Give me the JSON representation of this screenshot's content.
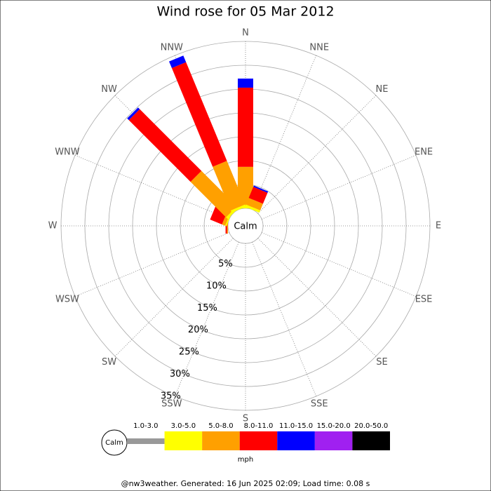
{
  "chart_data": {
    "type": "windrose",
    "title": "Wind rose for 05 Mar 2012",
    "directions": [
      "N",
      "NNE",
      "NE",
      "ENE",
      "E",
      "ESE",
      "SE",
      "SSE",
      "S",
      "SSW",
      "SW",
      "WSW",
      "W",
      "WNW",
      "NW",
      "NNW"
    ],
    "calm_label": "Calm",
    "rlim": [
      0,
      35
    ],
    "rticks": [
      {
        "value": 5,
        "label": "5%"
      },
      {
        "value": 10,
        "label": "10%"
      },
      {
        "value": 15,
        "label": "15%"
      },
      {
        "value": 20,
        "label": "20%"
      },
      {
        "value": 25,
        "label": "25%"
      },
      {
        "value": 30,
        "label": "30%"
      },
      {
        "value": 35,
        "label": "35%"
      }
    ],
    "series": [
      {
        "name": "1.0-3.0",
        "color": "#999999",
        "values": [
          0,
          0,
          0,
          0,
          0,
          0,
          0,
          0,
          0,
          0,
          0,
          0,
          0,
          0,
          0,
          0
        ]
      },
      {
        "name": "3.0-5.0",
        "color": "#ffff00",
        "values": [
          0.3,
          0.5,
          0,
          0,
          0,
          0,
          0,
          0,
          0,
          0,
          0,
          0,
          0,
          0.3,
          0.5,
          0.5
        ]
      },
      {
        "name": "5.0-8.0",
        "color": "#ffa000",
        "values": [
          8.4,
          1.5,
          0,
          0,
          0,
          0,
          0,
          0,
          0,
          0,
          0,
          0,
          0.2,
          0.7,
          10.5,
          9.9
        ]
      },
      {
        "name": "8.0-11.0",
        "color": "#ff0000",
        "values": [
          16.6,
          2.5,
          0,
          0,
          0,
          0,
          0,
          0,
          0,
          0,
          0,
          0,
          0.3,
          2.7,
          18.3,
          22.4
        ]
      },
      {
        "name": "11.0-15.0",
        "color": "#0000ff",
        "values": [
          1.9,
          0.3,
          0,
          0,
          0,
          0,
          0,
          0,
          0,
          0,
          0,
          0,
          0,
          0,
          0.5,
          1.5
        ]
      },
      {
        "name": "15.0-20.0",
        "color": "#a020f0",
        "values": [
          0,
          0,
          0,
          0,
          0,
          0,
          0,
          0,
          0,
          0,
          0,
          0,
          0,
          0,
          0,
          0
        ]
      },
      {
        "name": "20.0-50.0",
        "color": "#000000",
        "values": [
          0,
          0,
          0,
          0,
          0,
          0,
          0,
          0,
          0,
          0,
          0,
          0,
          0,
          0,
          0,
          0
        ]
      }
    ],
    "legend_unit": "mph",
    "footer": "@nw3weather. Generated: 16 Jun 2025 02:09; Load time: 0.08 s"
  }
}
